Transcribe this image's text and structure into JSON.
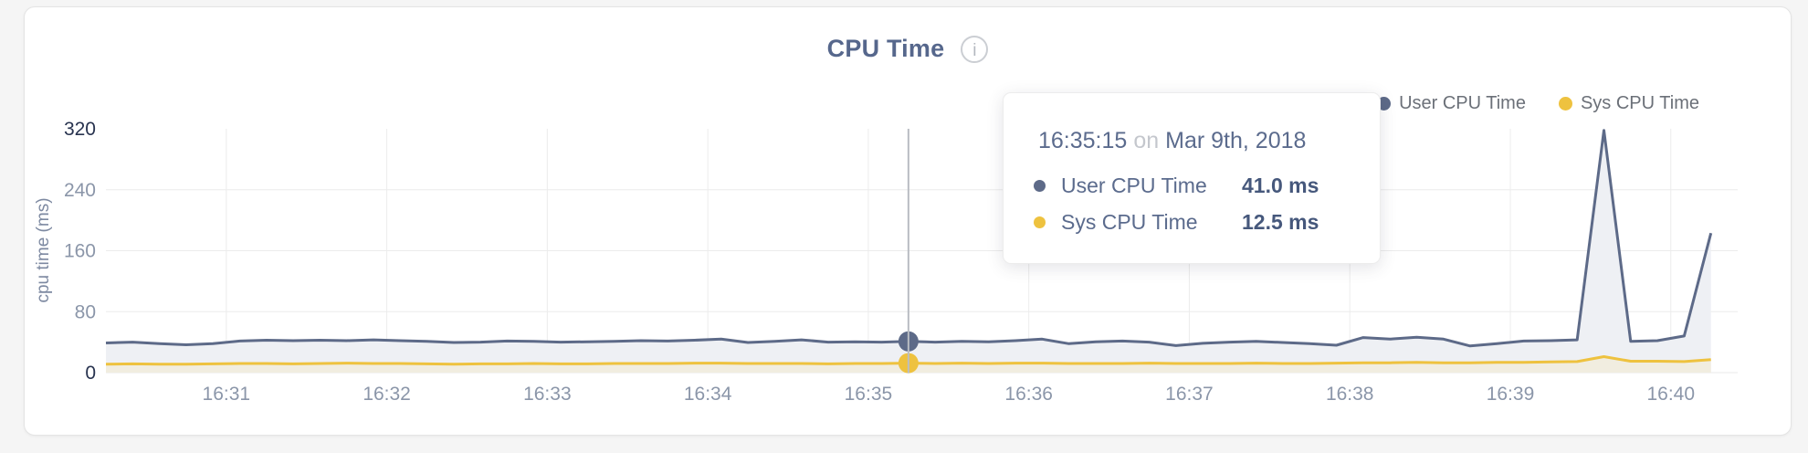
{
  "page": {
    "background": "#f5f5f5",
    "card_background": "#ffffff",
    "card_border": "#e4e4e4"
  },
  "header": {
    "title": "CPU Time",
    "info_glyph": "i"
  },
  "legend": {
    "items": [
      {
        "label": "User CPU Time",
        "color": "#5d6a88"
      },
      {
        "label": "Sys CPU Time",
        "color": "#eec23f"
      }
    ]
  },
  "tooltip": {
    "time": "16:35:15",
    "connector": "on",
    "date": "Mar 9th, 2018",
    "rows": [
      {
        "label": "User CPU Time",
        "value": "41.0 ms",
        "color": "#5d6a88"
      },
      {
        "label": "Sys CPU Time",
        "value": "12.5 ms",
        "color": "#eec23f"
      }
    ]
  },
  "chart_data": {
    "type": "area",
    "title": "CPU Time",
    "xlabel": "",
    "ylabel": "cpu time (ms)",
    "ylim": [
      0,
      320
    ],
    "yticks": [
      0,
      80,
      160,
      240,
      320
    ],
    "ytick_emphasis": [
      0,
      320
    ],
    "x_ticks": [
      "16:31",
      "16:32",
      "16:33",
      "16:34",
      "16:35",
      "16:36",
      "16:37",
      "16:38",
      "16:39",
      "16:40"
    ],
    "x_domain": [
      "16:30:15",
      "16:40:25"
    ],
    "date": "Mar 9th, 2018",
    "grid": true,
    "legend_position": "top-right",
    "sample_interval_seconds": 10,
    "series": [
      {
        "name": "User CPU Time",
        "color": "#5d6a88",
        "fill": "#eef0f4",
        "unit": "ms"
      },
      {
        "name": "Sys CPU Time",
        "color": "#eec23f",
        "fill": "#f1ede0",
        "unit": "ms"
      }
    ],
    "points": [
      [
        "16:30:15",
        39,
        11
      ],
      [
        "16:30:25",
        40,
        11.5
      ],
      [
        "16:30:35",
        38,
        11
      ],
      [
        "16:30:45",
        36.5,
        11
      ],
      [
        "16:30:55",
        38,
        11.5
      ],
      [
        "16:31:05",
        41.5,
        12
      ],
      [
        "16:31:15",
        42.5,
        12
      ],
      [
        "16:31:25",
        42,
        11.5
      ],
      [
        "16:31:35",
        42.5,
        12
      ],
      [
        "16:31:45",
        42,
        12.5
      ],
      [
        "16:31:55",
        43,
        12
      ],
      [
        "16:32:05",
        42,
        12
      ],
      [
        "16:32:15",
        41,
        11.5
      ],
      [
        "16:32:25",
        39.5,
        11
      ],
      [
        "16:32:35",
        40,
        11.5
      ],
      [
        "16:32:45",
        41.5,
        11.5
      ],
      [
        "16:32:55",
        41,
        12
      ],
      [
        "16:33:05",
        40,
        11.5
      ],
      [
        "16:33:15",
        40.5,
        11.5
      ],
      [
        "16:33:25",
        41,
        12
      ],
      [
        "16:33:35",
        42,
        12
      ],
      [
        "16:33:45",
        41.5,
        12
      ],
      [
        "16:33:55",
        42.5,
        12.5
      ],
      [
        "16:34:05",
        44,
        12.5
      ],
      [
        "16:34:15",
        39.5,
        12
      ],
      [
        "16:34:25",
        41,
        12
      ],
      [
        "16:34:35",
        43,
        12
      ],
      [
        "16:34:45",
        40,
        11.5
      ],
      [
        "16:34:55",
        40.5,
        12
      ],
      [
        "16:35:05",
        40,
        12
      ],
      [
        "16:35:15",
        41,
        12.5
      ],
      [
        "16:35:25",
        40,
        12
      ],
      [
        "16:35:35",
        41,
        12.5
      ],
      [
        "16:35:45",
        40.5,
        12
      ],
      [
        "16:35:55",
        42,
        12.5
      ],
      [
        "16:36:05",
        44,
        12.5
      ],
      [
        "16:36:15",
        38,
        12
      ],
      [
        "16:36:25",
        40.5,
        12
      ],
      [
        "16:36:35",
        41.5,
        12
      ],
      [
        "16:36:45",
        40,
        12.5
      ],
      [
        "16:36:55",
        35.5,
        12
      ],
      [
        "16:37:05",
        38.5,
        12
      ],
      [
        "16:37:15",
        40,
        12
      ],
      [
        "16:37:25",
        41,
        12.5
      ],
      [
        "16:37:35",
        39.5,
        12
      ],
      [
        "16:37:45",
        38,
        12
      ],
      [
        "16:37:55",
        36,
        12.5
      ],
      [
        "16:38:05",
        46,
        13
      ],
      [
        "16:38:15",
        44,
        13
      ],
      [
        "16:38:25",
        46.5,
        13.5
      ],
      [
        "16:38:35",
        44,
        13
      ],
      [
        "16:38:45",
        35,
        13
      ],
      [
        "16:38:55",
        38,
        13.5
      ],
      [
        "16:39:05",
        41.5,
        13.5
      ],
      [
        "16:39:15",
        42,
        14
      ],
      [
        "16:39:25",
        43,
        14.5
      ],
      [
        "16:39:35",
        318,
        21
      ],
      [
        "16:39:45",
        41,
        15
      ],
      [
        "16:39:55",
        42,
        15
      ],
      [
        "16:40:05",
        48,
        14.5
      ],
      [
        "16:40:15",
        183,
        17
      ]
    ],
    "highlight": {
      "time": "16:35:15",
      "user_ms": 41.0,
      "sys_ms": 12.5
    },
    "colors": {
      "grid": "#ececec",
      "baseline": "#e9e9e9",
      "crosshair": "#b9bdc3",
      "tick_label": "#8b96a9",
      "tick_label_emphasis": "#28334f",
      "axis_title": "#7d89a1"
    }
  }
}
